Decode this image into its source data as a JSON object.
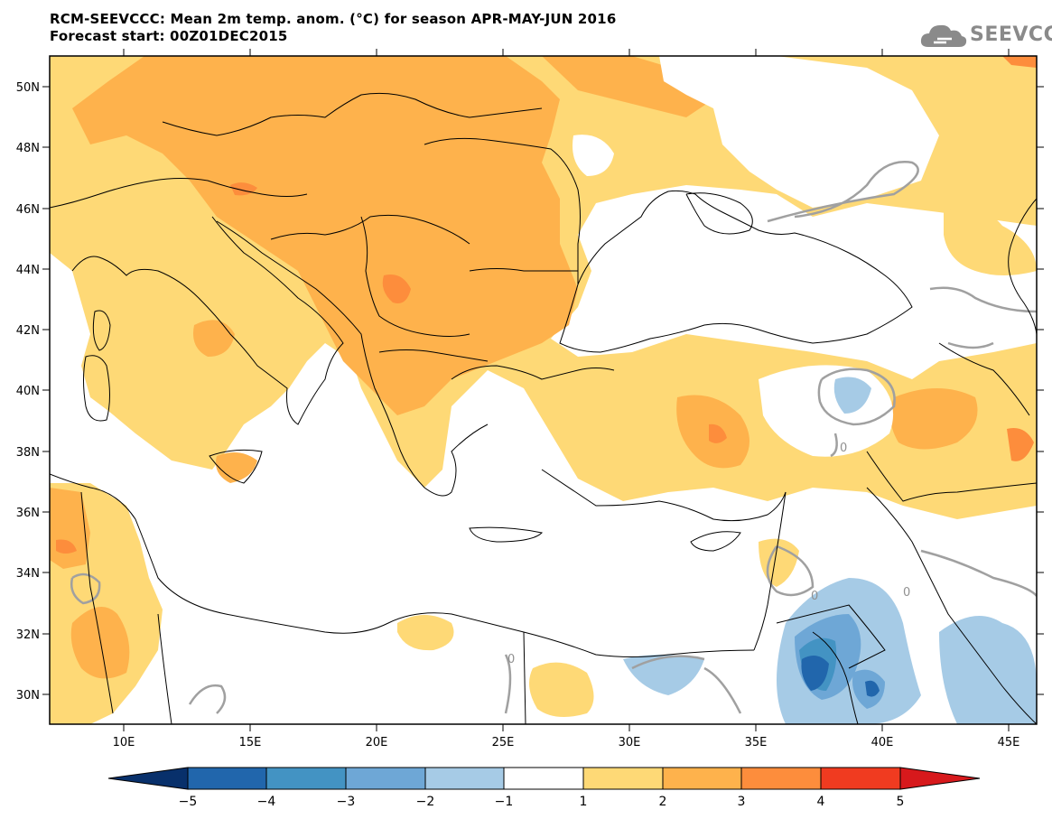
{
  "header": {
    "title_line1": "RCM-SEEVCCC: Mean 2m temp. anom. (°C) for season APR-MAY-JUN 2016",
    "title_line2": "Forecast start: 00Z01DEC2015"
  },
  "logo": {
    "text": "SEEVCCC",
    "icon": "cloud-icon"
  },
  "map": {
    "lon_labels": [
      "10E",
      "15E",
      "20E",
      "25E",
      "30E",
      "35E",
      "40E",
      "45E"
    ],
    "lat_labels": [
      "50N",
      "48N",
      "46N",
      "44N",
      "42N",
      "40N",
      "38N",
      "36N",
      "34N",
      "32N",
      "30N"
    ],
    "contour_labels": [
      "0",
      "0",
      "0",
      "0"
    ]
  },
  "colorbar": {
    "labels": [
      "−5",
      "−4",
      "−3",
      "−2",
      "−1",
      "1",
      "2",
      "3",
      "4",
      "5"
    ],
    "colors": [
      "#08306b",
      "#2166ac",
      "#4393c3",
      "#6ea7d6",
      "#a6cbe6",
      "#ffffff",
      "#fed976",
      "#feb24c",
      "#fd8d3c",
      "#f03b20",
      "#d7191c"
    ]
  }
}
